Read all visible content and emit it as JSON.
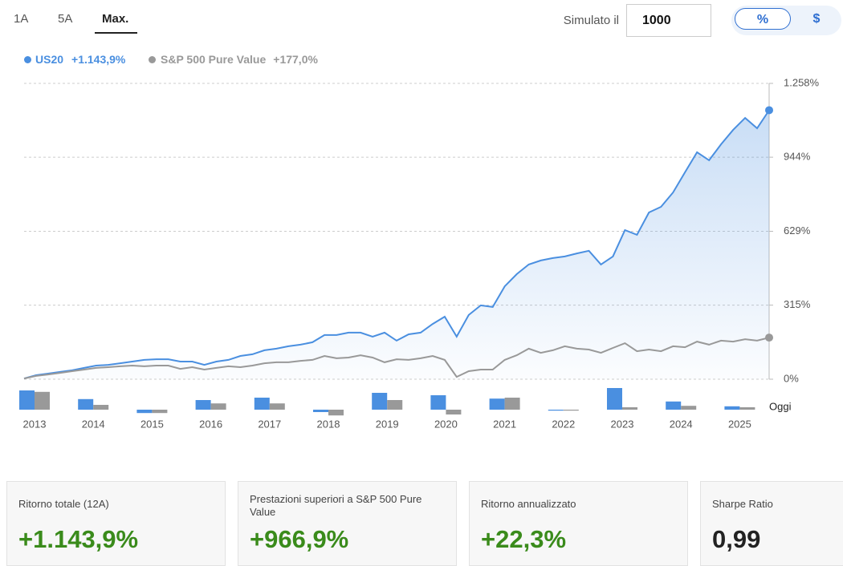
{
  "periods": [
    "1A",
    "5A",
    "Max."
  ],
  "simulate_label": "Simulato il",
  "simulate_amount": "1000",
  "units": [
    "%",
    "$"
  ],
  "today_label": "Oggi",
  "chart_data": [
    {
      "type": "line",
      "series": [
        {
          "name": "US20",
          "total": "+1.143,9%",
          "color": "#4a8fe0",
          "values": [
            3,
            17,
            24,
            31,
            38,
            48,
            58,
            61,
            68,
            75,
            82,
            85,
            85,
            75,
            75,
            61,
            75,
            82,
            99,
            106,
            123,
            130,
            140,
            147,
            157,
            188,
            188,
            198,
            198,
            181,
            198,
            164,
            191,
            198,
            235,
            266,
            181,
            273,
            314,
            307,
            395,
            447,
            488,
            505,
            515,
            522,
            535,
            546,
            488,
            522,
            634,
            614,
            709,
            733,
            794,
            880,
            965,
            931,
            999,
            1060,
            1111,
            1067,
            1143.9
          ]
        },
        {
          "name": "S&P 500 Pure Value",
          "total": "+177,0%",
          "color": "#999999",
          "values": [
            3,
            14,
            20,
            27,
            34,
            41,
            48,
            51,
            55,
            58,
            55,
            58,
            58,
            44,
            51,
            41,
            48,
            55,
            51,
            58,
            68,
            72,
            72,
            78,
            82,
            99,
            89,
            92,
            102,
            92,
            72,
            85,
            82,
            89,
            99,
            82,
            10,
            34,
            41,
            41,
            82,
            102,
            130,
            112,
            123,
            140,
            130,
            126,
            112,
            133,
            153,
            119,
            126,
            119,
            140,
            136,
            160,
            147,
            164,
            160,
            170,
            164,
            177
          ]
        }
      ],
      "ylim": [
        0,
        1258
      ],
      "yticks": [
        {
          "value": 0,
          "label": "0%"
        },
        {
          "value": 315,
          "label": "315%"
        },
        {
          "value": 629,
          "label": "629%"
        },
        {
          "value": 944,
          "label": "944%"
        },
        {
          "value": 1258,
          "label": "1.258%"
        }
      ],
      "grid": true
    },
    {
      "type": "bar",
      "categories": [
        "2013",
        "2014",
        "2015",
        "2016",
        "2017",
        "2018",
        "2019",
        "2020",
        "2021",
        "2022",
        "2023",
        "2024",
        "2025"
      ],
      "series": [
        {
          "color": "#4a8fe0",
          "values": [
            40,
            22,
            -7,
            20,
            25,
            -5,
            35,
            30,
            23,
            -2,
            45,
            17,
            7
          ]
        },
        {
          "color": "#999999",
          "values": [
            37,
            10,
            -7,
            13,
            13,
            -12,
            20,
            -10,
            25,
            -2,
            5,
            8,
            5
          ]
        }
      ]
    }
  ],
  "stats": [
    {
      "label": "Ritorno totale (12A)",
      "value": "+1.143,9%"
    },
    {
      "label": "Prestazioni superiori a S&P 500 Pure Value",
      "value": "+966,9%"
    },
    {
      "label": "Ritorno annualizzato",
      "value": "+22,3%"
    },
    {
      "label": "Sharpe Ratio",
      "value": "0,99"
    }
  ]
}
